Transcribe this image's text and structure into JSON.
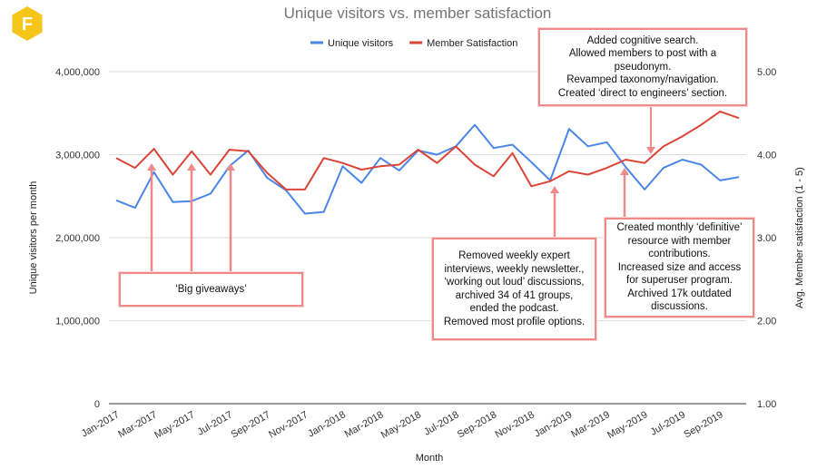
{
  "chart_data": {
    "type": "line",
    "title": "Unique visitors vs. member satisfaction",
    "xlabel": "Month",
    "ylabel_left": "Unique visitors per month",
    "ylabel_right": "Avg. Member satisfaction (1 - 5)",
    "ylim_left": [
      0,
      4000000
    ],
    "ylim_right": [
      1.0,
      5.0
    ],
    "yticks_left": [
      "0",
      "1,000,000",
      "2,000,000",
      "3,000,000",
      "4,000,000"
    ],
    "yticks_right": [
      "1.00",
      "2.00",
      "3.00",
      "4.00",
      "5.00"
    ],
    "grid": true,
    "legend_position": "top",
    "x": [
      "Jan-2017",
      "Feb-2017",
      "Mar-2017",
      "Apr-2017",
      "May-2017",
      "Jun-2017",
      "Jul-2017",
      "Aug-2017",
      "Sep-2017",
      "Oct-2017",
      "Nov-2017",
      "Dec-2017",
      "Jan-2018",
      "Feb-2018",
      "Mar-2018",
      "Apr-2018",
      "May-2018",
      "Jun-2018",
      "Jul-2018",
      "Aug-2018",
      "Sep-2018",
      "Oct-2018",
      "Nov-2018",
      "Dec-2018",
      "Jan-2019",
      "Feb-2019",
      "Mar-2019",
      "Apr-2019",
      "May-2019",
      "Jun-2019",
      "Jul-2019",
      "Aug-2019",
      "Sep-2019",
      "Oct-2019"
    ],
    "x_tick_labels": [
      "Jan-2017",
      "Mar-2017",
      "May-2017",
      "Jul-2017",
      "Sep-2017",
      "Nov-2017",
      "Jan-2018",
      "Mar-2018",
      "May-2018",
      "Jul-2018",
      "Sep-2018",
      "Nov-2018",
      "Jan-2019",
      "Mar-2019",
      "May-2019",
      "Jul-2019",
      "Sep-2019"
    ],
    "series": [
      {
        "name": "Unique visitors",
        "axis": "left",
        "color": "#4a86e8",
        "values": [
          2450000,
          2360000,
          2790000,
          2430000,
          2440000,
          2530000,
          2860000,
          3050000,
          2720000,
          2570000,
          2290000,
          2310000,
          2860000,
          2660000,
          2960000,
          2810000,
          3050000,
          3000000,
          3100000,
          3360000,
          3080000,
          3120000,
          2910000,
          2690000,
          3310000,
          3100000,
          3150000,
          2850000,
          2580000,
          2840000,
          2940000,
          2880000,
          2690000,
          2730000
        ]
      },
      {
        "name": "Member Satisfaction",
        "axis": "right",
        "color": "#db4437",
        "values": [
          3.96,
          3.84,
          4.07,
          3.76,
          4.04,
          3.76,
          4.06,
          4.04,
          3.78,
          3.58,
          3.58,
          3.96,
          3.9,
          3.82,
          3.86,
          3.88,
          4.06,
          3.9,
          4.1,
          3.88,
          3.74,
          4.02,
          3.62,
          3.68,
          3.8,
          3.76,
          3.84,
          3.94,
          3.9,
          4.1,
          4.22,
          4.36,
          4.52,
          4.44
        ]
      }
    ],
    "annotations": [
      {
        "id": "giveaways",
        "text": "‘Big giveaways’",
        "points_to_months": [
          2,
          4,
          6
        ]
      },
      {
        "id": "removed",
        "text": "Removed weekly expert\ninterviews, weekly newsletter.,\n‘working out loud’ discussions,\narchived 34 of 41 groups,\nended the podcast.\nRemoved most profile options.",
        "points_to_months": [
          22
        ]
      },
      {
        "id": "definitive",
        "text": "Created monthly ‘definitive’\nresource with member\ncontributions.\nIncreased size and access\nfor superuser program.\nArchived 17k outdated\ndiscussions.",
        "points_to_months": [
          26
        ]
      },
      {
        "id": "search",
        "text": "Added cognitive search.\nAllowed members to post with a\npseudonym.\nRevamped taxonomy/navigation.\nCreated ‘direct to engineers’ section.",
        "points_to_months": [
          28
        ]
      }
    ]
  },
  "logo": {
    "letter": "F",
    "color": "#f5c518"
  },
  "colors": {
    "grid": "#dddddd",
    "arrow": "#f08a8a"
  }
}
